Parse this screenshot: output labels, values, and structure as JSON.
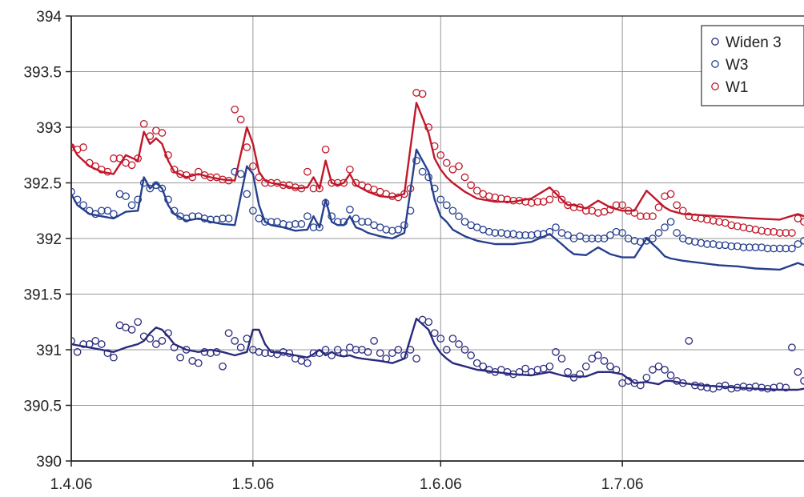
{
  "chart_data": {
    "type": "line",
    "title": "",
    "xlabel": "",
    "ylabel": "",
    "x_ticks": [
      "1.4.06",
      "1.5.06",
      "1.6.06",
      "1.7.06"
    ],
    "x_tick_days": [
      0,
      30,
      61,
      91
    ],
    "y_ticks": [
      "390",
      "390.5",
      "391",
      "391.5",
      "392",
      "392.5",
      "393",
      "393.5",
      "394"
    ],
    "ylim": [
      390,
      394
    ],
    "xlim_days": [
      0,
      121
    ],
    "grid": true,
    "legend_position": "top-right",
    "legend": [
      {
        "label": "Widen 3",
        "color": "#2a2a7e"
      },
      {
        "label": "W3",
        "color": "#27408f"
      },
      {
        "label": "W1",
        "color": "#c0182a"
      }
    ],
    "series": [
      {
        "name": "W1",
        "color": "#c0182a",
        "line_days": [
          0,
          1,
          3,
          5,
          7,
          9,
          11,
          12,
          13,
          14,
          15,
          16,
          17,
          19,
          21,
          23,
          25,
          27,
          29,
          30,
          31,
          32,
          33,
          35,
          37,
          39,
          40,
          41,
          42,
          43,
          44,
          45,
          46,
          47,
          48,
          49,
          51,
          53,
          55,
          57,
          59,
          60,
          61,
          62,
          63,
          65,
          67,
          70,
          73,
          76,
          79,
          81,
          82,
          83,
          85,
          87,
          89,
          91,
          93,
          95,
          97,
          98,
          99,
          101,
          104,
          107,
          110,
          113,
          117,
          120,
          121
        ],
        "line_values": [
          392.85,
          392.75,
          392.65,
          392.6,
          392.58,
          392.75,
          392.7,
          392.96,
          392.85,
          392.9,
          392.85,
          392.7,
          392.6,
          392.55,
          392.58,
          392.55,
          392.53,
          392.52,
          393.0,
          392.85,
          392.6,
          392.52,
          392.5,
          392.48,
          392.45,
          392.46,
          392.55,
          392.45,
          392.7,
          392.5,
          392.48,
          392.5,
          392.58,
          392.48,
          392.45,
          392.42,
          392.38,
          392.37,
          392.4,
          393.22,
          392.95,
          392.72,
          392.62,
          392.55,
          392.5,
          392.42,
          392.36,
          392.33,
          392.33,
          392.36,
          392.46,
          392.35,
          392.3,
          392.3,
          392.27,
          392.34,
          392.28,
          392.25,
          392.25,
          392.43,
          392.33,
          392.28,
          392.25,
          392.22,
          392.21,
          392.2,
          392.19,
          392.18,
          392.17,
          392.22,
          392.2
        ],
        "point_days": [
          0,
          1,
          2,
          3,
          4,
          5,
          6,
          7,
          8,
          9,
          10,
          11,
          12,
          13,
          14,
          15,
          16,
          17,
          18,
          19,
          20,
          21,
          22,
          23,
          24,
          25,
          26,
          27,
          28,
          29,
          30,
          31,
          32,
          33,
          34,
          35,
          36,
          37,
          38,
          39,
          40,
          41,
          42,
          43,
          44,
          45,
          46,
          47,
          48,
          49,
          50,
          51,
          52,
          53,
          54,
          55,
          56,
          57,
          58,
          59,
          60,
          61,
          62,
          63,
          64,
          65,
          66,
          67,
          68,
          69,
          70,
          71,
          72,
          73,
          74,
          75,
          76,
          77,
          78,
          79,
          80,
          81,
          82,
          83,
          84,
          85,
          86,
          87,
          88,
          89,
          90,
          91,
          92,
          93,
          94,
          95,
          96,
          97,
          98,
          99,
          100,
          101,
          102,
          103,
          104,
          105,
          106,
          107,
          108,
          109,
          110,
          111,
          112,
          113,
          114,
          115,
          116,
          117,
          118,
          119,
          120,
          121
        ],
        "point_values": [
          392.82,
          392.8,
          392.82,
          392.68,
          392.65,
          392.62,
          392.6,
          392.72,
          392.72,
          392.68,
          392.66,
          392.72,
          393.03,
          392.92,
          392.97,
          392.95,
          392.75,
          392.62,
          392.58,
          392.57,
          392.55,
          392.6,
          392.57,
          392.55,
          392.55,
          392.53,
          392.52,
          393.16,
          393.07,
          392.82,
          392.65,
          392.55,
          392.5,
          392.5,
          392.5,
          392.48,
          392.48,
          392.46,
          392.45,
          392.6,
          392.45,
          392.45,
          392.8,
          392.5,
          392.5,
          392.5,
          392.62,
          392.5,
          392.48,
          392.46,
          392.44,
          392.42,
          392.4,
          392.38,
          392.37,
          392.4,
          392.45,
          393.31,
          393.3,
          393.0,
          392.83,
          392.75,
          392.68,
          392.62,
          392.65,
          392.55,
          392.48,
          392.43,
          392.4,
          392.38,
          392.37,
          392.36,
          392.35,
          392.34,
          392.34,
          392.33,
          392.32,
          392.33,
          392.33,
          392.35,
          392.4,
          392.35,
          392.3,
          392.28,
          392.28,
          392.25,
          392.25,
          392.23,
          392.24,
          392.26,
          392.3,
          392.3,
          392.25,
          392.23,
          392.2,
          392.2,
          392.2,
          392.28,
          392.38,
          392.4,
          392.3,
          392.25,
          392.2,
          392.19,
          392.18,
          392.17,
          392.16,
          392.15,
          392.14,
          392.12,
          392.11,
          392.1,
          392.09,
          392.08,
          392.07,
          392.06,
          392.06,
          392.05,
          392.05,
          392.05,
          392.18,
          392.15
        ]
      },
      {
        "name": "W3",
        "color": "#27408f",
        "line_days": [
          0,
          1,
          3,
          5,
          7,
          9,
          11,
          12,
          13,
          14,
          15,
          16,
          17,
          19,
          21,
          23,
          25,
          27,
          29,
          30,
          31,
          32,
          33,
          35,
          37,
          39,
          40,
          41,
          42,
          43,
          44,
          45,
          46,
          47,
          48,
          49,
          51,
          53,
          55,
          57,
          59,
          60,
          61,
          62,
          63,
          65,
          67,
          70,
          73,
          76,
          79,
          81,
          82,
          83,
          85,
          87,
          89,
          91,
          93,
          95,
          97,
          98,
          99,
          101,
          104,
          107,
          110,
          113,
          117,
          120,
          121
        ],
        "line_values": [
          392.4,
          392.3,
          392.22,
          392.2,
          392.18,
          392.24,
          392.25,
          392.55,
          392.45,
          392.5,
          392.45,
          392.3,
          392.22,
          392.16,
          392.18,
          392.15,
          392.13,
          392.12,
          392.65,
          392.58,
          392.3,
          392.15,
          392.12,
          392.1,
          392.07,
          392.08,
          392.2,
          392.1,
          392.35,
          392.15,
          392.12,
          392.12,
          392.2,
          392.1,
          392.08,
          392.05,
          392.02,
          392.0,
          392.05,
          392.8,
          392.6,
          392.35,
          392.2,
          392.15,
          392.08,
          392.02,
          391.98,
          391.95,
          391.95,
          391.97,
          392.04,
          391.95,
          391.9,
          391.86,
          391.85,
          391.92,
          391.86,
          391.83,
          391.83,
          392.0,
          391.9,
          391.84,
          391.82,
          391.8,
          391.78,
          391.76,
          391.75,
          391.73,
          391.72,
          391.78,
          391.76
        ],
        "point_days": [
          0,
          1,
          2,
          3,
          4,
          5,
          6,
          7,
          8,
          9,
          10,
          11,
          12,
          13,
          14,
          15,
          16,
          17,
          18,
          19,
          20,
          21,
          22,
          23,
          24,
          25,
          26,
          27,
          28,
          29,
          30,
          31,
          32,
          33,
          34,
          35,
          36,
          37,
          38,
          39,
          40,
          41,
          42,
          43,
          44,
          45,
          46,
          47,
          48,
          49,
          50,
          51,
          52,
          53,
          54,
          55,
          56,
          57,
          58,
          59,
          60,
          61,
          62,
          63,
          64,
          65,
          66,
          67,
          68,
          69,
          70,
          71,
          72,
          73,
          74,
          75,
          76,
          77,
          78,
          79,
          80,
          81,
          82,
          83,
          84,
          85,
          86,
          87,
          88,
          89,
          90,
          91,
          92,
          93,
          94,
          95,
          96,
          97,
          98,
          99,
          100,
          101,
          102,
          103,
          104,
          105,
          106,
          107,
          108,
          109,
          110,
          111,
          112,
          113,
          114,
          115,
          116,
          117,
          118,
          119,
          120,
          121
        ],
        "point_values": [
          392.42,
          392.35,
          392.3,
          392.25,
          392.22,
          392.25,
          392.25,
          392.22,
          392.4,
          392.38,
          392.3,
          392.35,
          392.5,
          392.45,
          392.48,
          392.45,
          392.35,
          392.25,
          392.2,
          392.18,
          392.2,
          392.2,
          392.18,
          392.17,
          392.17,
          392.18,
          392.18,
          392.6,
          392.58,
          392.4,
          392.25,
          392.18,
          392.15,
          392.15,
          392.15,
          392.13,
          392.12,
          392.13,
          392.13,
          392.2,
          392.1,
          392.1,
          392.32,
          392.2,
          392.15,
          392.15,
          392.26,
          392.18,
          392.15,
          392.15,
          392.12,
          392.1,
          392.08,
          392.07,
          392.08,
          392.12,
          392.25,
          392.7,
          392.6,
          392.55,
          392.45,
          392.35,
          392.3,
          392.25,
          392.2,
          392.15,
          392.12,
          392.1,
          392.08,
          392.06,
          392.05,
          392.05,
          392.04,
          392.04,
          392.03,
          392.03,
          392.03,
          392.04,
          392.04,
          392.06,
          392.1,
          392.05,
          392.03,
          392.0,
          392.02,
          392.0,
          392.0,
          392.0,
          392.0,
          392.03,
          392.06,
          392.05,
          392.0,
          391.98,
          391.97,
          391.98,
          392.0,
          392.05,
          392.1,
          392.15,
          392.05,
          392.0,
          391.98,
          391.97,
          391.96,
          391.95,
          391.95,
          391.94,
          391.94,
          391.93,
          391.93,
          391.92,
          391.92,
          391.92,
          391.92,
          391.91,
          391.91,
          391.91,
          391.91,
          391.91,
          391.95,
          391.98
        ]
      },
      {
        "name": "Widen 3",
        "color": "#2a2a7e",
        "line_days": [
          0,
          3,
          5,
          7,
          9,
          11,
          12,
          13,
          14,
          15,
          16,
          17,
          19,
          21,
          23,
          25,
          27,
          29,
          30,
          31,
          32,
          33,
          35,
          37,
          39,
          40,
          41,
          42,
          43,
          44,
          45,
          46,
          47,
          48,
          51,
          53,
          55,
          57,
          59,
          60,
          61,
          62,
          63,
          65,
          67,
          70,
          73,
          76,
          79,
          81,
          82,
          83,
          85,
          87,
          89,
          91,
          93,
          95,
          97,
          98,
          99,
          101,
          104,
          107,
          110,
          113,
          117,
          120,
          121
        ],
        "line_values": [
          391.05,
          391.02,
          391.0,
          390.98,
          391.02,
          391.05,
          391.08,
          391.15,
          391.2,
          391.18,
          391.12,
          391.05,
          391.0,
          390.98,
          391.0,
          390.98,
          390.95,
          390.98,
          391.18,
          391.18,
          391.05,
          390.98,
          390.97,
          390.95,
          390.93,
          390.96,
          391.0,
          390.95,
          390.98,
          390.95,
          390.94,
          390.95,
          390.93,
          390.92,
          390.9,
          390.88,
          390.92,
          391.28,
          391.18,
          391.05,
          390.97,
          390.92,
          390.88,
          390.85,
          390.82,
          390.8,
          390.78,
          390.77,
          390.8,
          390.77,
          390.76,
          390.76,
          390.76,
          390.8,
          390.8,
          390.78,
          390.7,
          390.71,
          390.69,
          390.72,
          390.72,
          390.7,
          390.68,
          390.67,
          390.66,
          390.65,
          390.64,
          390.64,
          390.65
        ],
        "point_days": [
          0,
          1,
          2,
          3,
          4,
          5,
          6,
          7,
          8,
          9,
          10,
          11,
          12,
          13,
          14,
          15,
          16,
          17,
          18,
          19,
          20,
          21,
          22,
          23,
          24,
          25,
          26,
          27,
          28,
          29,
          30,
          31,
          32,
          33,
          34,
          35,
          36,
          37,
          38,
          39,
          40,
          41,
          42,
          43,
          44,
          45,
          46,
          47,
          48,
          49,
          50,
          51,
          52,
          53,
          54,
          55,
          56,
          57,
          58,
          59,
          60,
          61,
          62,
          63,
          64,
          65,
          66,
          67,
          68,
          69,
          70,
          71,
          72,
          73,
          74,
          75,
          76,
          77,
          78,
          79,
          80,
          81,
          82,
          83,
          84,
          85,
          86,
          87,
          88,
          89,
          90,
          91,
          92,
          93,
          94,
          95,
          96,
          97,
          98,
          99,
          100,
          101,
          102,
          103,
          104,
          105,
          106,
          107,
          108,
          109,
          110,
          111,
          112,
          113,
          114,
          115,
          116,
          117,
          118,
          119,
          120,
          121
        ],
        "point_values": [
          391.08,
          390.98,
          391.05,
          391.05,
          391.08,
          391.05,
          390.97,
          390.93,
          391.22,
          391.2,
          391.18,
          391.25,
          391.12,
          391.1,
          391.05,
          391.08,
          391.15,
          391.02,
          390.93,
          391.0,
          390.9,
          390.88,
          390.98,
          390.97,
          390.98,
          390.85,
          391.15,
          391.08,
          391.02,
          391.1,
          391.0,
          390.98,
          390.97,
          390.97,
          390.96,
          390.98,
          390.97,
          390.92,
          390.9,
          390.88,
          390.97,
          390.97,
          391.0,
          390.95,
          391.0,
          390.97,
          391.02,
          391.0,
          391.0,
          390.98,
          391.08,
          390.97,
          390.92,
          390.97,
          391.0,
          390.95,
          391.0,
          390.92,
          391.27,
          391.25,
          391.15,
          391.1,
          391.0,
          391.1,
          391.05,
          391.0,
          390.95,
          390.88,
          390.85,
          390.82,
          390.8,
          390.82,
          390.8,
          390.78,
          390.8,
          390.83,
          390.8,
          390.82,
          390.83,
          390.85,
          390.98,
          390.92,
          390.8,
          390.75,
          390.78,
          390.85,
          390.92,
          390.95,
          390.9,
          390.85,
          390.82,
          390.7,
          390.72,
          390.7,
          390.68,
          390.75,
          390.82,
          390.85,
          390.82,
          390.77,
          390.72,
          390.7,
          391.08,
          390.68,
          390.67,
          390.66,
          390.65,
          390.67,
          390.68,
          390.65,
          390.66,
          390.67,
          390.66,
          390.67,
          390.66,
          390.65,
          390.66,
          390.67,
          390.66,
          391.02,
          390.8,
          390.72
        ]
      }
    ]
  }
}
